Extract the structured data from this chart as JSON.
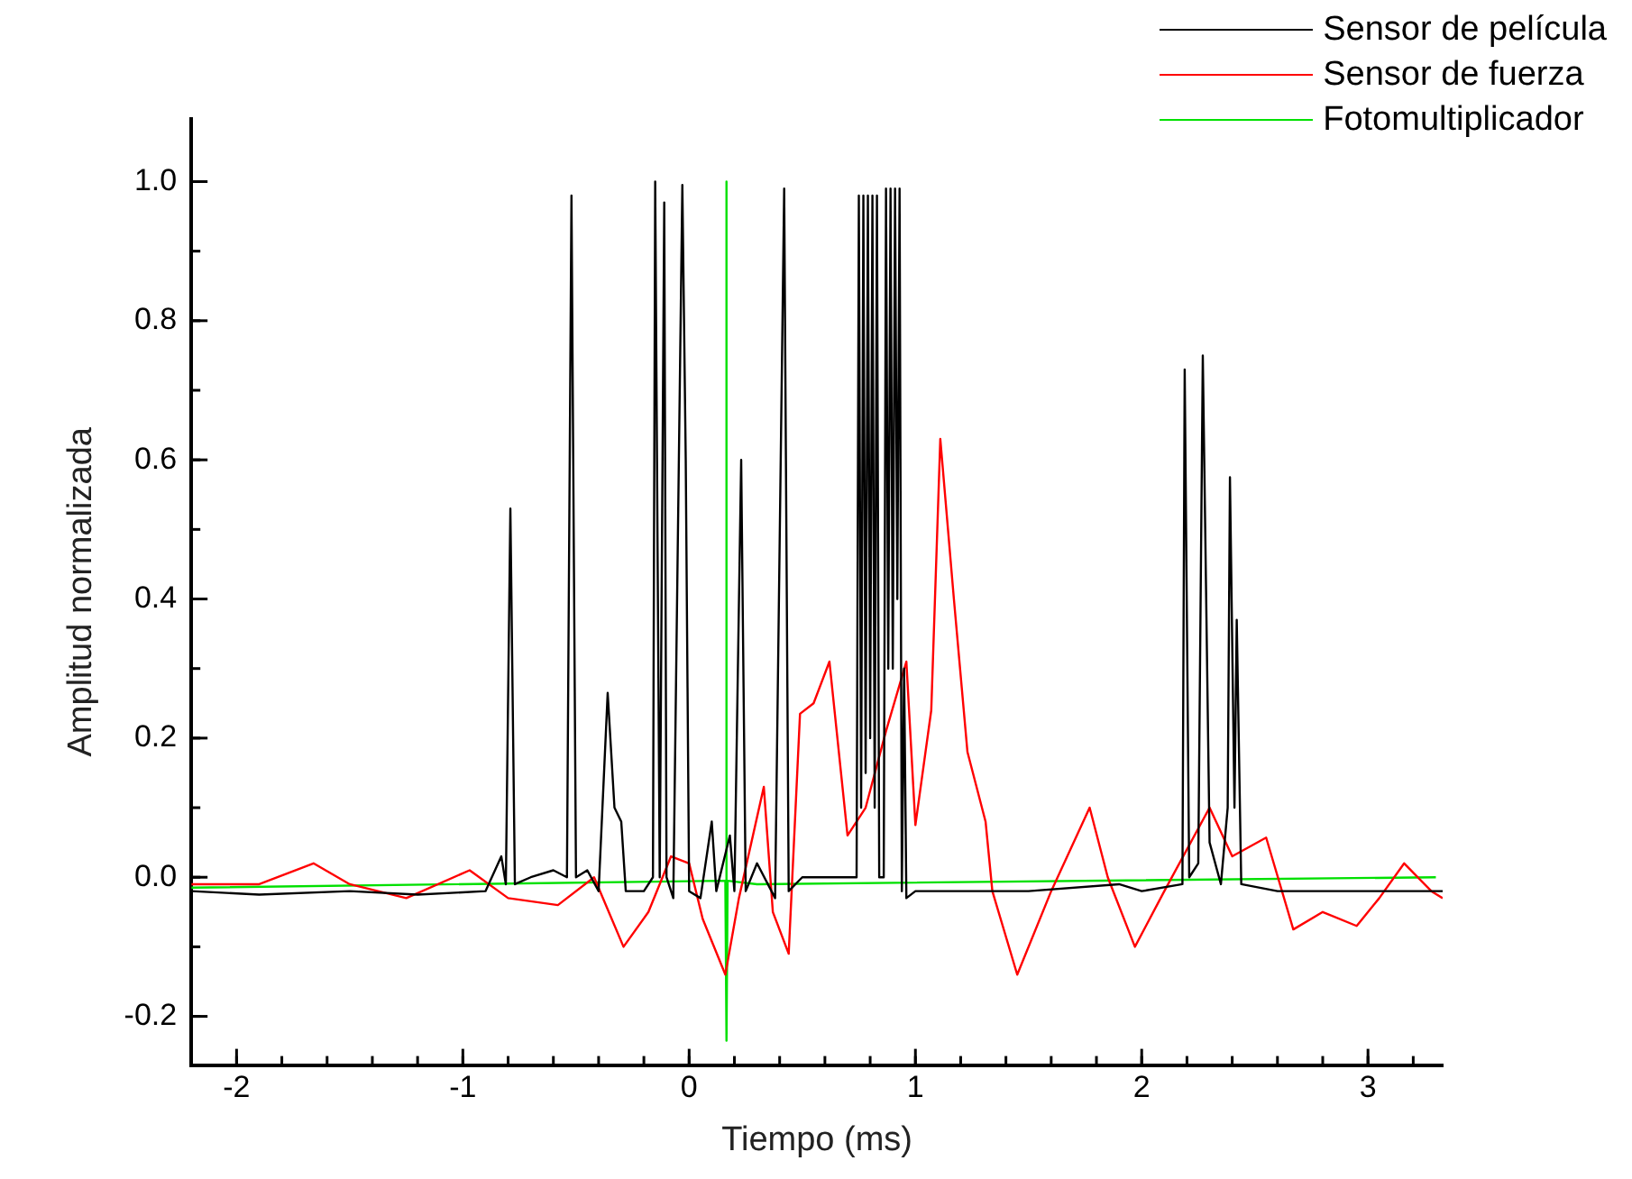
{
  "chart_data": {
    "type": "line",
    "xlabel": "Tiempo (ms)",
    "ylabel": "Amplitud normalizada",
    "xlim": [
      -2.2,
      3.33
    ],
    "xticks": [
      -2,
      -1,
      0,
      1,
      2,
      3
    ],
    "ylim": [
      -0.27,
      1.09
    ],
    "yticks": [
      -0.2,
      {
        "value": 0,
        "label": "0.0"
      },
      0.2,
      0.4,
      0.6,
      0.8,
      {
        "value": 1,
        "label": "1.0"
      }
    ],
    "grid": false,
    "legend": "top right",
    "marker": "none",
    "line_style": "solid",
    "series": [
      {
        "name": "Sensor de película",
        "color": "#000000",
        "x": [
          -2.2,
          -1.9,
          -1.5,
          -1.2,
          -0.9,
          -0.83,
          -0.81,
          -0.79,
          -0.77,
          -0.7,
          -0.6,
          -0.54,
          -0.52,
          -0.5,
          -0.45,
          -0.4,
          -0.36,
          -0.33,
          -0.3,
          -0.28,
          -0.2,
          -0.16,
          -0.15,
          -0.13,
          -0.11,
          -0.1,
          -0.07,
          -0.03,
          -0.015,
          0.0,
          0.05,
          0.1,
          0.12,
          0.18,
          0.2,
          0.23,
          0.25,
          0.3,
          0.38,
          0.42,
          0.44,
          0.5,
          0.6,
          0.74,
          0.75,
          0.76,
          0.77,
          0.78,
          0.79,
          0.8,
          0.81,
          0.82,
          0.83,
          0.84,
          0.86,
          0.87,
          0.88,
          0.89,
          0.9,
          0.91,
          0.92,
          0.93,
          0.94,
          0.95,
          0.96,
          1.0,
          1.5,
          1.9,
          2.0,
          2.18,
          2.19,
          2.21,
          2.25,
          2.27,
          2.3,
          2.35,
          2.38,
          2.39,
          2.41,
          2.42,
          2.44,
          2.6,
          3.0,
          3.33
        ],
        "values": [
          -0.02,
          -0.025,
          -0.02,
          -0.025,
          -0.02,
          0.03,
          -0.01,
          0.53,
          -0.01,
          0.0,
          0.01,
          0.0,
          0.98,
          0.0,
          0.01,
          -0.02,
          0.265,
          0.1,
          0.08,
          -0.02,
          -0.02,
          0.0,
          1.0,
          0.0,
          0.97,
          0.0,
          -0.03,
          0.995,
          0.6,
          -0.02,
          -0.03,
          0.08,
          -0.02,
          0.06,
          -0.02,
          0.6,
          -0.02,
          0.02,
          -0.03,
          0.99,
          -0.02,
          0.0,
          0.0,
          0.0,
          0.98,
          0.1,
          0.98,
          0.15,
          0.98,
          0.2,
          0.98,
          0.1,
          0.98,
          0.0,
          0.0,
          0.99,
          0.3,
          0.99,
          0.3,
          0.99,
          0.4,
          0.99,
          -0.02,
          0.3,
          -0.03,
          -0.02,
          -0.02,
          -0.01,
          -0.02,
          -0.01,
          0.73,
          0.0,
          0.02,
          0.75,
          0.05,
          -0.01,
          0.1,
          0.575,
          0.1,
          0.37,
          -0.01,
          -0.02,
          -0.02,
          -0.02
        ]
      },
      {
        "name": "Sensor de fuerza",
        "color": "#ff0000",
        "x": [
          -2.2,
          -1.9,
          -1.66,
          -1.5,
          -1.25,
          -0.97,
          -0.8,
          -0.58,
          -0.42,
          -0.29,
          -0.18,
          -0.08,
          0.0,
          0.06,
          0.16,
          0.22,
          0.33,
          0.37,
          0.44,
          0.49,
          0.55,
          0.62,
          0.7,
          0.78,
          0.87,
          0.96,
          1.0,
          1.07,
          1.11,
          1.17,
          1.23,
          1.31,
          1.34,
          1.45,
          1.6,
          1.77,
          1.85,
          1.97,
          2.1,
          2.3,
          2.4,
          2.55,
          2.67,
          2.8,
          2.95,
          3.05,
          3.16,
          3.28,
          3.33
        ],
        "values": [
          -0.01,
          -0.01,
          0.02,
          -0.01,
          -0.03,
          0.01,
          -0.03,
          -0.04,
          0.0,
          -0.1,
          -0.05,
          0.03,
          0.02,
          -0.06,
          -0.14,
          -0.03,
          0.13,
          -0.05,
          -0.11,
          0.235,
          0.25,
          0.31,
          0.06,
          0.1,
          0.21,
          0.31,
          0.075,
          0.24,
          0.63,
          0.4,
          0.18,
          0.08,
          -0.02,
          -0.14,
          -0.02,
          0.1,
          0.0,
          -0.1,
          -0.02,
          0.1,
          0.03,
          0.057,
          -0.075,
          -0.05,
          -0.07,
          -0.03,
          0.02,
          -0.02,
          -0.03
        ]
      },
      {
        "name": "Fotomultiplicador",
        "color": "#00e000",
        "x": [
          -2.2,
          0.16,
          0.165,
          0.1651,
          0.17,
          0.3,
          3.3
        ],
        "values": [
          -0.015,
          -0.005,
          1.0,
          -0.235,
          -0.005,
          -0.01,
          0.0
        ]
      }
    ]
  }
}
